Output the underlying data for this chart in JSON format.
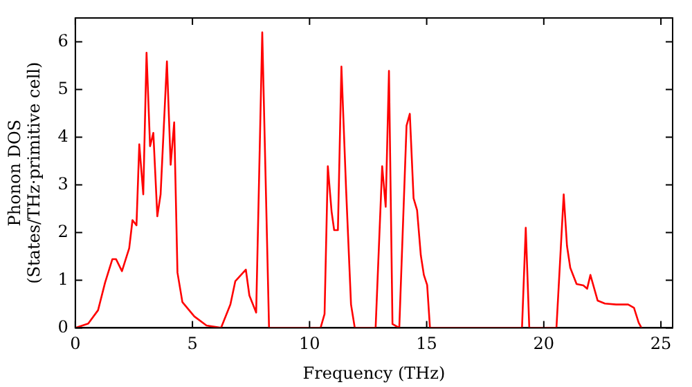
{
  "chart_data": {
    "type": "line",
    "xlabel": "Frequency (THz)",
    "ylabel": "Phonon DOS\n(States/THz·primitive cell)",
    "xlim": [
      0,
      25.5
    ],
    "ylim": [
      0,
      6.5
    ],
    "xticks": [
      0,
      5,
      10,
      15,
      20,
      25
    ],
    "yticks": [
      0,
      1,
      2,
      3,
      4,
      5,
      6
    ],
    "grid": false,
    "legend": false,
    "marker": "none",
    "line_style": "solid",
    "series": [
      {
        "color": "#ff0000",
        "x": [
          0,
          0.55,
          0.97,
          1.27,
          1.58,
          1.74,
          1.99,
          2.3,
          2.44,
          2.61,
          2.73,
          2.9,
          3.04,
          3.19,
          3.33,
          3.5,
          3.64,
          3.91,
          4.07,
          4.22,
          4.36,
          4.57,
          5.08,
          5.6,
          6.22,
          6.62,
          6.83,
          7.28,
          7.43,
          7.72,
          7.98,
          8.27,
          10.47,
          10.64,
          10.78,
          10.94,
          11.05,
          11.21,
          11.36,
          11.56,
          11.77,
          11.93,
          12.82,
          13.1,
          13.25,
          13.39,
          13.54,
          13.83,
          14.14,
          14.28,
          14.44,
          14.59,
          14.75,
          14.88,
          15.02,
          15.14,
          19.07,
          19.23,
          19.38,
          20.54,
          20.85,
          20.99,
          21.13,
          21.4,
          21.69,
          21.85,
          21.99,
          22.3,
          22.61,
          23.09,
          23.6,
          23.85,
          24.05,
          24.17
        ],
        "values": [
          0,
          0.09,
          0.37,
          0.95,
          1.44,
          1.44,
          1.19,
          1.67,
          2.26,
          2.15,
          3.85,
          2.8,
          5.77,
          3.81,
          4.09,
          2.34,
          2.8,
          5.59,
          3.42,
          4.31,
          1.16,
          0.54,
          0.24,
          0.05,
          0,
          0.49,
          0.98,
          1.22,
          0.68,
          0.32,
          6.2,
          0,
          0,
          0.29,
          3.39,
          2.44,
          2.05,
          2.05,
          5.48,
          2.9,
          0.49,
          0,
          0,
          3.39,
          2.54,
          5.39,
          0.08,
          0,
          4.24,
          4.49,
          2.72,
          2.47,
          1.52,
          1.11,
          0.9,
          0,
          0,
          2.1,
          0,
          0,
          2.8,
          1.72,
          1.26,
          0.92,
          0.89,
          0.82,
          1.11,
          0.57,
          0.51,
          0.49,
          0.49,
          0.42,
          0.11,
          0
        ]
      }
    ]
  }
}
